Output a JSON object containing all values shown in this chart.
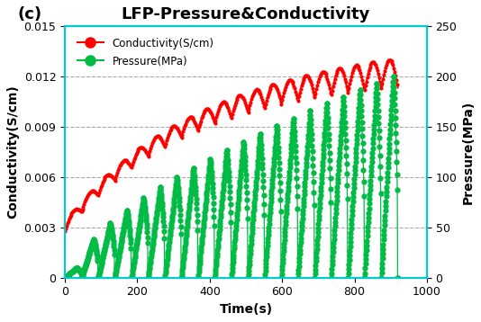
{
  "title": "LFP-Pressure&Conductivity",
  "panel_label": "(c)",
  "xlabel": "Time(s)",
  "ylabel_left": "Conductivity(S/cm)",
  "ylabel_right": "Pressure(MPa)",
  "xlim": [
    0,
    1000
  ],
  "ylim_left": [
    0,
    0.015
  ],
  "ylim_right": [
    0,
    250
  ],
  "yticks_left": [
    0,
    0.003,
    0.006,
    0.009,
    0.012,
    0.015
  ],
  "yticks_right": [
    0,
    50,
    100,
    150,
    200,
    250
  ],
  "xticks": [
    0,
    200,
    400,
    600,
    800,
    1000
  ],
  "conductivity_color": "#FF0000",
  "pressure_color": "#00BB44",
  "n_cycles": 20,
  "total_time": 920,
  "background_color": "#FFFFFF",
  "title_fontsize": 13,
  "label_fontsize": 10,
  "tick_fontsize": 9,
  "border_color": "#00CCCC"
}
